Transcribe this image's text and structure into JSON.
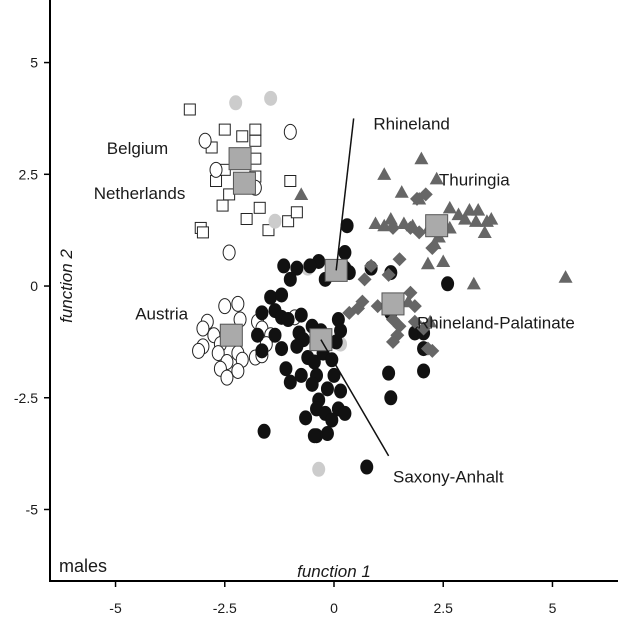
{
  "chart_data": {
    "type": "scatter",
    "panel_label": "males",
    "xlabel": "function 1",
    "ylabel": "function 2",
    "xlim": [
      -6.5,
      6.5
    ],
    "ylim": [
      -6.6,
      6.4
    ],
    "xticks": [
      -5,
      -2.5,
      0,
      2.5,
      5
    ],
    "yticks": [
      -5,
      -2.5,
      0,
      2.5,
      5
    ],
    "xtick_labels": [
      "-5",
      "-2.5",
      "0",
      "2.5",
      "5"
    ],
    "ytick_labels": [
      "-5",
      "-2.5",
      "0",
      "2.5",
      "5"
    ],
    "grid": false,
    "colors": {
      "black": "#111111",
      "dark_gray": "#666666",
      "light_gray": "#cccccc",
      "centroid": "#aaaaaa",
      "outline": "#222222"
    },
    "series": [
      {
        "marker": "open-square",
        "points": [
          [
            -3.3,
            3.95
          ],
          [
            -2.5,
            3.5
          ],
          [
            -2.1,
            3.35
          ],
          [
            -1.8,
            3.5
          ],
          [
            -1.8,
            3.25
          ],
          [
            -2.8,
            3.1
          ],
          [
            -1.8,
            2.85
          ],
          [
            -2.5,
            2.6
          ],
          [
            -1.8,
            2.45
          ],
          [
            -2.7,
            2.35
          ],
          [
            -1.0,
            2.35
          ],
          [
            -2.4,
            2.05
          ],
          [
            -2.55,
            1.8
          ],
          [
            -1.7,
            1.75
          ],
          [
            -2.0,
            1.5
          ],
          [
            -1.5,
            1.25
          ],
          [
            -1.05,
            1.45
          ],
          [
            -0.85,
            1.65
          ],
          [
            -3.05,
            1.3
          ],
          [
            -3.0,
            1.2
          ]
        ]
      },
      {
        "marker": "open-circle",
        "points": [
          [
            -2.95,
            3.25
          ],
          [
            -1.0,
            3.45
          ],
          [
            -2.7,
            2.6
          ],
          [
            -1.8,
            2.2
          ],
          [
            -2.4,
            0.75
          ],
          [
            -2.2,
            -0.4
          ],
          [
            -2.5,
            -0.45
          ],
          [
            -2.15,
            -0.75
          ],
          [
            -2.9,
            -0.8
          ],
          [
            -3.0,
            -0.95
          ],
          [
            -2.75,
            -1.1
          ],
          [
            -2.6,
            -1.3
          ],
          [
            -3.0,
            -1.35
          ],
          [
            -3.1,
            -1.45
          ],
          [
            -2.65,
            -1.5
          ],
          [
            -2.2,
            -1.5
          ],
          [
            -2.45,
            -1.7
          ],
          [
            -2.1,
            -1.65
          ],
          [
            -1.8,
            -1.6
          ],
          [
            -1.65,
            -1.55
          ],
          [
            -1.75,
            -0.8
          ],
          [
            -1.65,
            -0.95
          ],
          [
            -1.45,
            -1.1
          ],
          [
            -1.55,
            -1.3
          ],
          [
            -2.6,
            -1.85
          ],
          [
            -2.45,
            -2.05
          ],
          [
            -2.2,
            -1.9
          ],
          [
            -0.9,
            -0.7
          ]
        ]
      },
      {
        "marker": "gray-circle",
        "points": [
          [
            -2.25,
            4.1
          ],
          [
            -1.45,
            4.2
          ],
          [
            -1.35,
            1.45
          ],
          [
            -0.6,
            0.4
          ],
          [
            0.15,
            -1.3
          ],
          [
            -0.35,
            -4.1
          ]
        ]
      },
      {
        "marker": "black-circle",
        "points": [
          [
            0.3,
            1.35
          ],
          [
            -0.35,
            0.55
          ],
          [
            0.25,
            0.75
          ],
          [
            -1.15,
            0.45
          ],
          [
            -0.85,
            0.4
          ],
          [
            -1.0,
            0.15
          ],
          [
            0.25,
            0.4
          ],
          [
            0.85,
            0.4
          ],
          [
            -0.2,
            0.15
          ],
          [
            0.35,
            0.3
          ],
          [
            1.3,
            0.3
          ],
          [
            -1.45,
            -0.25
          ],
          [
            -1.2,
            -0.2
          ],
          [
            -1.35,
            -0.55
          ],
          [
            -1.2,
            -0.7
          ],
          [
            -1.65,
            -0.6
          ],
          [
            -1.75,
            -1.1
          ],
          [
            -1.35,
            -1.1
          ],
          [
            -0.8,
            -1.05
          ],
          [
            -1.05,
            -0.75
          ],
          [
            -0.75,
            -0.65
          ],
          [
            -0.5,
            -0.9
          ],
          [
            -0.3,
            -1.0
          ],
          [
            -0.4,
            -1.2
          ],
          [
            -0.7,
            -1.2
          ],
          [
            -0.85,
            -1.35
          ],
          [
            -1.65,
            -1.45
          ],
          [
            -1.2,
            -1.4
          ],
          [
            -0.6,
            -1.6
          ],
          [
            -0.45,
            -1.7
          ],
          [
            -0.25,
            -1.5
          ],
          [
            0.1,
            -0.75
          ],
          [
            0.15,
            -1.0
          ],
          [
            0.05,
            -1.25
          ],
          [
            -0.05,
            -1.65
          ],
          [
            -1.1,
            -1.85
          ],
          [
            -0.75,
            -2.0
          ],
          [
            -0.4,
            -2.0
          ],
          [
            0.0,
            -2.0
          ],
          [
            -1.0,
            -2.15
          ],
          [
            -0.5,
            -2.2
          ],
          [
            -0.15,
            -2.3
          ],
          [
            0.15,
            -2.35
          ],
          [
            -0.35,
            -2.55
          ],
          [
            0.1,
            -2.75
          ],
          [
            -0.4,
            -2.75
          ],
          [
            -0.2,
            -2.85
          ],
          [
            0.25,
            -2.85
          ],
          [
            -0.65,
            -2.95
          ],
          [
            -0.05,
            -3.0
          ],
          [
            -0.15,
            -3.3
          ],
          [
            -0.4,
            -3.35
          ],
          [
            -0.45,
            -3.35
          ],
          [
            -1.6,
            -3.25
          ],
          [
            0.75,
            -4.05
          ],
          [
            1.3,
            -0.6
          ],
          [
            1.85,
            -1.05
          ],
          [
            2.05,
            -1.05
          ],
          [
            2.05,
            -1.4
          ],
          [
            2.05,
            -1.9
          ],
          [
            1.25,
            -1.95
          ],
          [
            1.3,
            -2.5
          ],
          [
            2.6,
            0.05
          ],
          [
            -0.55,
            0.45
          ]
        ]
      },
      {
        "marker": "diamond",
        "points": [
          [
            1.5,
            0.6
          ],
          [
            1.25,
            0.25
          ],
          [
            0.85,
            0.45
          ],
          [
            0.7,
            0.15
          ],
          [
            0.55,
            -0.5
          ],
          [
            0.35,
            -0.6
          ],
          [
            0.65,
            -0.35
          ],
          [
            1.0,
            -0.45
          ],
          [
            1.75,
            -0.15
          ],
          [
            1.85,
            -0.45
          ],
          [
            1.35,
            -0.75
          ],
          [
            1.5,
            -0.9
          ],
          [
            2.05,
            -0.95
          ],
          [
            1.45,
            -1.1
          ],
          [
            1.35,
            -1.25
          ],
          [
            2.15,
            -1.4
          ],
          [
            2.25,
            -1.45
          ],
          [
            1.85,
            -0.8
          ],
          [
            1.95,
            1.2
          ],
          [
            2.25,
            0.85
          ],
          [
            1.35,
            1.3
          ],
          [
            1.9,
            1.95
          ],
          [
            2.1,
            2.05
          ],
          [
            1.75,
            1.3
          ]
        ]
      },
      {
        "marker": "triangle",
        "points": [
          [
            -0.75,
            2.05
          ],
          [
            1.15,
            2.5
          ],
          [
            1.55,
            2.1
          ],
          [
            2.0,
            2.85
          ],
          [
            2.35,
            2.4
          ],
          [
            1.95,
            1.95
          ],
          [
            2.65,
            1.75
          ],
          [
            2.85,
            1.6
          ],
          [
            3.0,
            1.5
          ],
          [
            3.1,
            1.7
          ],
          [
            3.3,
            1.7
          ],
          [
            3.25,
            1.45
          ],
          [
            3.5,
            1.45
          ],
          [
            3.6,
            1.5
          ],
          [
            3.45,
            1.2
          ],
          [
            2.65,
            1.3
          ],
          [
            2.4,
            1.1
          ],
          [
            2.15,
            0.5
          ],
          [
            2.5,
            0.55
          ],
          [
            2.3,
            0.95
          ],
          [
            0.95,
            1.4
          ],
          [
            1.15,
            1.35
          ],
          [
            1.3,
            1.5
          ],
          [
            1.8,
            1.35
          ],
          [
            1.6,
            1.4
          ],
          [
            2.2,
            1.35
          ],
          [
            3.2,
            0.05
          ],
          [
            5.3,
            0.2
          ],
          [
            2.2,
            -0.8
          ],
          [
            1.7,
            -0.35
          ]
        ]
      }
    ],
    "centroids": [
      {
        "label": "Belgium",
        "x": -2.15,
        "y": 2.85
      },
      {
        "label": "Netherlands",
        "x": -2.05,
        "y": 2.3
      },
      {
        "label": "Austria",
        "x": -2.35,
        "y": -1.1
      },
      {
        "label": "Rhineland",
        "x": 0.05,
        "y": 0.35
      },
      {
        "label": "Saxony-Anhalt",
        "x": -0.3,
        "y": -1.2
      },
      {
        "label": "Rhineland-Palatinate",
        "x": 1.35,
        "y": -0.4
      },
      {
        "label": "Thuringia",
        "x": 2.35,
        "y": 1.35
      }
    ],
    "annotations": [
      {
        "text": "Belgium",
        "x": -5.2,
        "y": 2.95,
        "anchor": "start"
      },
      {
        "text": "Netherlands",
        "x": -5.5,
        "y": 1.95,
        "anchor": "start"
      },
      {
        "text": "Austria",
        "x": -4.55,
        "y": -0.75,
        "anchor": "start"
      },
      {
        "text": "Rhineland",
        "x": 0.9,
        "y": 3.5,
        "anchor": "start",
        "line_to": [
          0.05,
          0.35
        ],
        "line_from": [
          0.45,
          3.75
        ]
      },
      {
        "text": "Thuringia",
        "x": 2.4,
        "y": 2.25,
        "anchor": "start"
      },
      {
        "text": "Rhineland-Palatinate",
        "x": 1.9,
        "y": -0.95,
        "anchor": "start"
      },
      {
        "text": "Saxony-Anhalt",
        "x": 1.35,
        "y": -4.4,
        "anchor": "start",
        "line_to": [
          -0.3,
          -1.2
        ],
        "line_from": [
          1.25,
          -3.8
        ]
      }
    ]
  }
}
